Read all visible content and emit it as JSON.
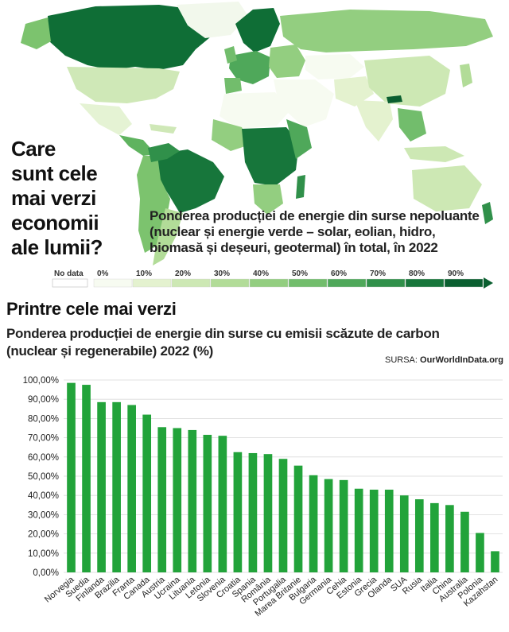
{
  "headline": [
    "Care",
    "sunt cele",
    "mai verzi",
    "economii",
    "ale lumii?"
  ],
  "map": {
    "subtitle_lines": [
      "Ponderea producției de energie din surse nepoluante",
      "(nuclear și energie verde – solar, eolian, hidro,",
      "biomasă și deșeuri, geotermal) în total, în 2022"
    ],
    "legend": {
      "no_data_label": "No data",
      "stops": [
        "0%",
        "10%",
        "20%",
        "30%",
        "40%",
        "50%",
        "60%",
        "70%",
        "80%",
        "90%"
      ],
      "colors": [
        "#f7fbf1",
        "#e4f2cf",
        "#cde8b4",
        "#b2dc98",
        "#93ce80",
        "#72bd6c",
        "#4fa85a",
        "#30904a",
        "#17763b",
        "#0a5f30"
      ]
    }
  },
  "section_title": "Printre cele mai verzi",
  "chart_subtitle_lines": [
    "Ponderea producției de energie din surse cu emisii scăzute de carbon",
    "(nuclear și regenerabile) 2022 (%)"
  ],
  "source": {
    "prefix": "SURSA: ",
    "name": "OurWorldInData.org"
  },
  "chart_data": {
    "type": "bar",
    "title": "Ponderea producției de energie din surse cu emisii scăzute de carbon (nuclear și regenerabile) 2022 (%)",
    "categories": [
      "Norvegia",
      "Suedia",
      "Finlanda",
      "Brazilia",
      "Franta",
      "Canada",
      "Austria",
      "Ucraina",
      "Lituania",
      "Letonia",
      "Slovenia",
      "Croatia",
      "Spania",
      "România",
      "Portugalia",
      "Marea Britanie",
      "Bulgaria",
      "Germania",
      "Cehia",
      "Estonia",
      "Grecia",
      "Olanda",
      "SUA",
      "Rusia",
      "Italia",
      "China",
      "Australia",
      "Polonia",
      "Kazahstan"
    ],
    "values": [
      98.5,
      97.5,
      88.5,
      88.5,
      87.0,
      82.0,
      75.5,
      75.0,
      74.0,
      71.5,
      71.0,
      62.5,
      62.0,
      61.5,
      59.0,
      55.5,
      50.5,
      48.5,
      48.0,
      43.5,
      43.0,
      43.0,
      40.0,
      38.0,
      36.0,
      35.0,
      31.5,
      20.5,
      11.0
    ],
    "ylim": [
      0,
      100
    ],
    "ytick_labels": [
      "0,00%",
      "10,00%",
      "20,00%",
      "30,00%",
      "40,00%",
      "50,00%",
      "60,00%",
      "70,00%",
      "80,00%",
      "90,00%",
      "100,00%"
    ],
    "xlabel": "",
    "ylabel": "",
    "bar_color": "#22a33a",
    "grid": true
  }
}
